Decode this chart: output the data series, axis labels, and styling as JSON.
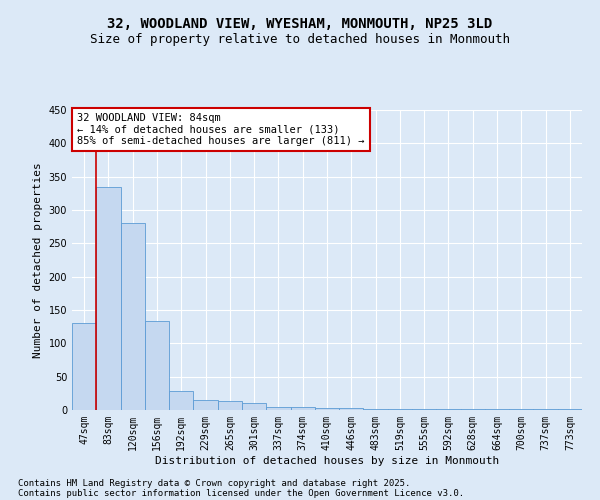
{
  "title_line1": "32, WOODLAND VIEW, WYESHAM, MONMOUTH, NP25 3LD",
  "title_line2": "Size of property relative to detached houses in Monmouth",
  "xlabel": "Distribution of detached houses by size in Monmouth",
  "ylabel": "Number of detached properties",
  "categories": [
    "47sqm",
    "83sqm",
    "120sqm",
    "156sqm",
    "192sqm",
    "229sqm",
    "265sqm",
    "301sqm",
    "337sqm",
    "374sqm",
    "410sqm",
    "446sqm",
    "483sqm",
    "519sqm",
    "555sqm",
    "592sqm",
    "628sqm",
    "664sqm",
    "700sqm",
    "737sqm",
    "773sqm"
  ],
  "values": [
    130,
    335,
    280,
    133,
    28,
    15,
    13,
    10,
    5,
    5,
    3,
    3,
    1,
    1,
    1,
    2,
    1,
    1,
    1,
    1,
    1
  ],
  "bar_color": "#c5d8f0",
  "bar_edge_color": "#5b9bd5",
  "vline_x": 0.5,
  "annotation_text": "32 WOODLAND VIEW: 84sqm\n← 14% of detached houses are smaller (133)\n85% of semi-detached houses are larger (811) →",
  "annotation_box_color": "#ffffff",
  "annotation_border_color": "#cc0000",
  "ylim": [
    0,
    450
  ],
  "yticks": [
    0,
    50,
    100,
    150,
    200,
    250,
    300,
    350,
    400,
    450
  ],
  "bg_color": "#dce9f7",
  "plot_bg_color": "#dce9f7",
  "grid_color": "#ffffff",
  "vline_color": "#cc0000",
  "footer_line1": "Contains HM Land Registry data © Crown copyright and database right 2025.",
  "footer_line2": "Contains public sector information licensed under the Open Government Licence v3.0.",
  "title_fontsize": 10,
  "subtitle_fontsize": 9,
  "axis_label_fontsize": 8,
  "tick_fontsize": 7,
  "annotation_fontsize": 7.5,
  "footer_fontsize": 6.5
}
